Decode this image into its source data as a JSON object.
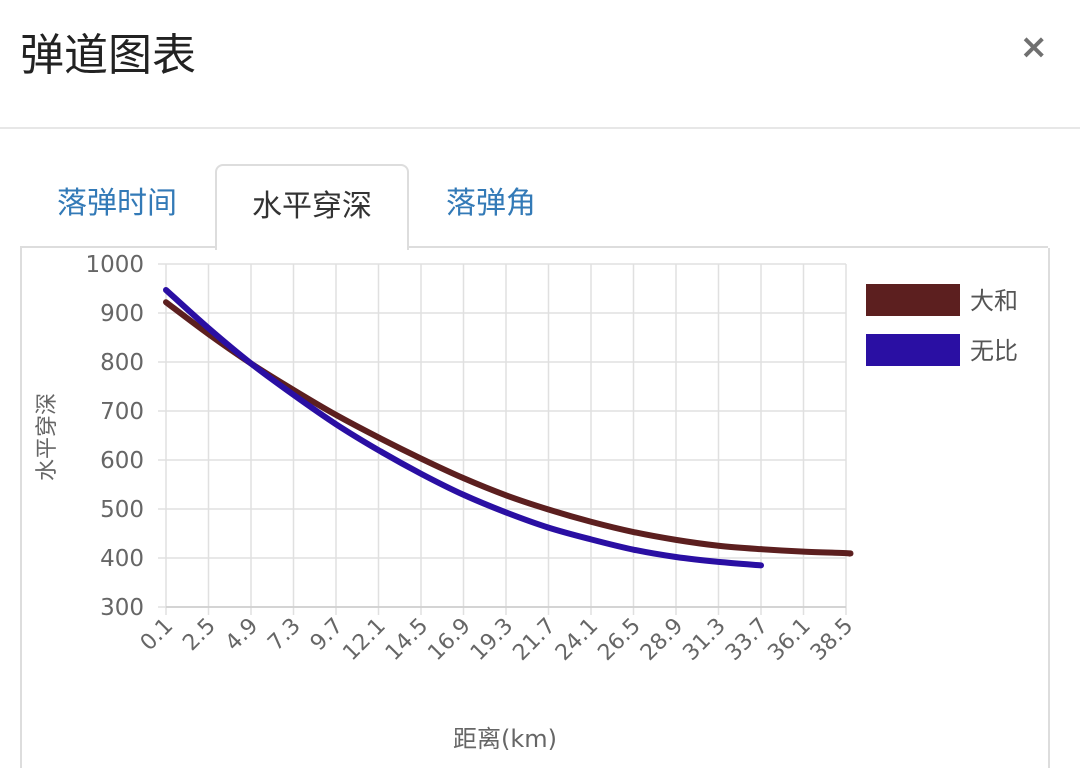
{
  "dialog": {
    "title": "弹道图表",
    "close_symbol": "×"
  },
  "tabs": [
    {
      "label": "落弹时间",
      "active": false
    },
    {
      "label": "水平穿深",
      "active": true
    },
    {
      "label": "落弹角",
      "active": false
    }
  ],
  "chart_data": {
    "type": "line",
    "xlabel": "距离(km)",
    "ylabel": "水平穿深",
    "x_ticks": [
      "0.1",
      "2.5",
      "4.9",
      "7.3",
      "9.7",
      "12.1",
      "14.5",
      "16.9",
      "19.3",
      "21.7",
      "24.1",
      "26.5",
      "28.9",
      "31.3",
      "33.7",
      "36.1",
      "38.5"
    ],
    "xlim": [
      0.1,
      38.5
    ],
    "ylim": [
      300,
      1000
    ],
    "y_ticks": [
      300,
      400,
      500,
      600,
      700,
      800,
      900,
      1000
    ],
    "grid": true,
    "legend_position": "right",
    "series": [
      {
        "name": "大和",
        "color": "#5c1f1f",
        "x": [
          0.1,
          2.5,
          4.9,
          7.3,
          9.7,
          12.1,
          14.5,
          16.9,
          19.3,
          21.7,
          24.1,
          26.5,
          28.9,
          31.3,
          33.7,
          36.1,
          38.5,
          38.7
        ],
        "values": [
          922,
          857,
          797,
          743,
          692,
          646,
          603,
          563,
          528,
          499,
          474,
          453,
          437,
          425,
          418,
          413,
          410,
          409
        ]
      },
      {
        "name": "无比",
        "color": "#2a0fa3",
        "x": [
          0.1,
          2.5,
          4.9,
          7.3,
          9.7,
          12.1,
          14.5,
          16.9,
          19.3,
          21.7,
          24.1,
          26.5,
          28.9,
          31.3,
          33.7
        ],
        "values": [
          947,
          869,
          797,
          733,
          673,
          620,
          572,
          529,
          493,
          462,
          438,
          417,
          402,
          392,
          385
        ]
      }
    ]
  }
}
